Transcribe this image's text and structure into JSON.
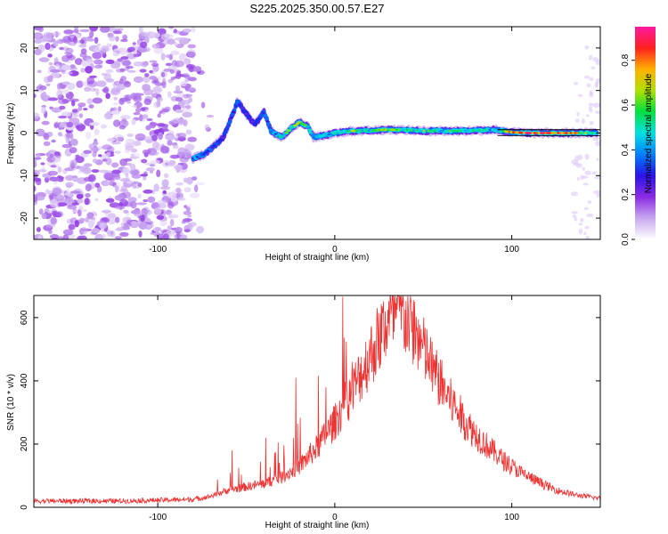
{
  "title": "S225.2025.350.00.57.E27",
  "chart_data": [
    {
      "type": "heatmap",
      "xlabel": "Height of straight line (km)",
      "ylabel": "Frequency (Hz)",
      "xlim": [
        -170,
        150
      ],
      "ylim": [
        -25,
        25
      ],
      "xticks": [
        -100,
        0,
        100
      ],
      "yticks": [
        -20,
        -10,
        0,
        10,
        20
      ],
      "colorbar": {
        "label": "Normalized spectral amplitude",
        "range": [
          0,
          0.95
        ],
        "ticks": [
          "0.0",
          "0.2",
          "0.4",
          "0.6",
          "0.8"
        ],
        "tick_values": [
          0,
          0.2,
          0.4,
          0.6,
          0.8
        ],
        "colormap": [
          "#ffffff",
          "#c8a8f0",
          "#8a2be2",
          "#2a14e6",
          "#0080ff",
          "#00e0e0",
          "#00e040",
          "#b0e000",
          "#ffb000",
          "#ff2020",
          "#ff1aa0"
        ]
      },
      "noise_region_x": [
        -170,
        -80
      ],
      "ridge": [
        {
          "x": -80,
          "f": -6.0,
          "a": 0.45
        },
        {
          "x": -74,
          "f": -5.0,
          "a": 0.4
        },
        {
          "x": -68,
          "f": -3.0,
          "a": 0.35
        },
        {
          "x": -63,
          "f": -1.0,
          "a": 0.3
        },
        {
          "x": -58,
          "f": 4.0,
          "a": 0.35
        },
        {
          "x": -55,
          "f": 7.5,
          "a": 0.35
        },
        {
          "x": -50,
          "f": 4.5,
          "a": 0.3
        },
        {
          "x": -45,
          "f": 2.0,
          "a": 0.3
        },
        {
          "x": -40,
          "f": 5.0,
          "a": 0.35
        },
        {
          "x": -36,
          "f": 0.5,
          "a": 0.4
        },
        {
          "x": -30,
          "f": -1.0,
          "a": 0.55
        },
        {
          "x": -25,
          "f": 1.0,
          "a": 0.6
        },
        {
          "x": -20,
          "f": 2.5,
          "a": 0.75
        },
        {
          "x": -15,
          "f": 1.5,
          "a": 0.6
        },
        {
          "x": -12,
          "f": -1.0,
          "a": 0.4
        },
        {
          "x": -5,
          "f": -0.5,
          "a": 0.45
        },
        {
          "x": 0,
          "f": 0.0,
          "a": 0.55
        },
        {
          "x": 10,
          "f": 0.5,
          "a": 0.65
        },
        {
          "x": 20,
          "f": 0.6,
          "a": 0.55
        },
        {
          "x": 30,
          "f": 0.8,
          "a": 0.7
        },
        {
          "x": 40,
          "f": 0.7,
          "a": 0.55
        },
        {
          "x": 50,
          "f": 0.5,
          "a": 0.6
        },
        {
          "x": 60,
          "f": 0.5,
          "a": 0.55
        },
        {
          "x": 70,
          "f": 0.5,
          "a": 0.6
        },
        {
          "x": 80,
          "f": 0.6,
          "a": 0.55
        },
        {
          "x": 90,
          "f": 0.8,
          "a": 0.45
        },
        {
          "x": 100,
          "f": 0.2,
          "a": 0.8
        },
        {
          "x": 110,
          "f": 0.0,
          "a": 0.9
        },
        {
          "x": 120,
          "f": 0.0,
          "a": 0.9
        },
        {
          "x": 130,
          "f": 0.0,
          "a": 0.85
        },
        {
          "x": 140,
          "f": 0.0,
          "a": 0.7
        },
        {
          "x": 148,
          "f": 0.0,
          "a": 0.5
        }
      ]
    },
    {
      "type": "line",
      "xlabel": "Height of straight line (km)",
      "ylabel": "SNR (10 * v/v)",
      "xlim": [
        -170,
        150
      ],
      "ylim": [
        0,
        670
      ],
      "xticks": [
        -100,
        0,
        100
      ],
      "yticks": [
        0,
        200,
        400,
        600
      ],
      "color": "#ee3333",
      "envelope": [
        {
          "x": -170,
          "y": 20
        },
        {
          "x": -120,
          "y": 20
        },
        {
          "x": -80,
          "y": 25
        },
        {
          "x": -70,
          "y": 35
        },
        {
          "x": -60,
          "y": 55
        },
        {
          "x": -50,
          "y": 65
        },
        {
          "x": -40,
          "y": 75
        },
        {
          "x": -30,
          "y": 95
        },
        {
          "x": -20,
          "y": 130
        },
        {
          "x": -10,
          "y": 190
        },
        {
          "x": 0,
          "y": 270
        },
        {
          "x": 10,
          "y": 370
        },
        {
          "x": 20,
          "y": 480
        },
        {
          "x": 30,
          "y": 590
        },
        {
          "x": 37,
          "y": 620
        },
        {
          "x": 45,
          "y": 560
        },
        {
          "x": 55,
          "y": 440
        },
        {
          "x": 65,
          "y": 340
        },
        {
          "x": 75,
          "y": 260
        },
        {
          "x": 85,
          "y": 200
        },
        {
          "x": 95,
          "y": 150
        },
        {
          "x": 105,
          "y": 110
        },
        {
          "x": 115,
          "y": 80
        },
        {
          "x": 125,
          "y": 55
        },
        {
          "x": 135,
          "y": 40
        },
        {
          "x": 150,
          "y": 28
        }
      ],
      "spikes": [
        {
          "x": -58,
          "y": 180
        },
        {
          "x": -39,
          "y": 220
        },
        {
          "x": -32,
          "y": 205
        },
        {
          "x": -22,
          "y": 410
        },
        {
          "x": -5,
          "y": 380
        },
        {
          "x": 10,
          "y": 460
        },
        {
          "x": 35,
          "y": 665
        }
      ]
    }
  ]
}
